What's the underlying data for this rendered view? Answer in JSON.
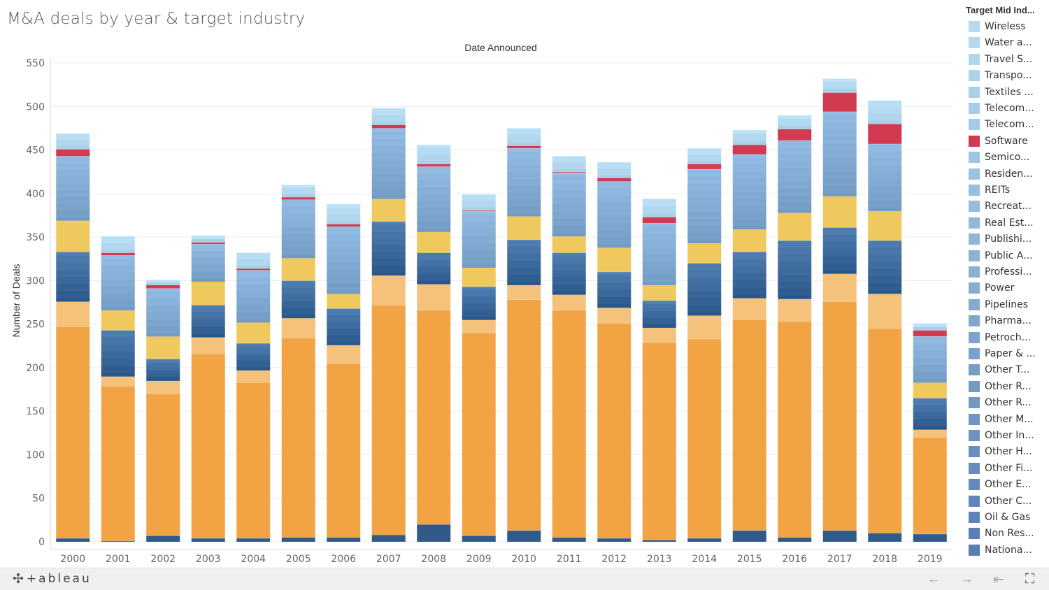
{
  "title": "M&A deals by year & target industry",
  "legend": {
    "title": "Target Mid Ind...",
    "items": [
      {
        "label": "Wireless",
        "color": "#b5daf0"
      },
      {
        "label": "Water a...",
        "color": "#b3d8ef"
      },
      {
        "label": "Travel S...",
        "color": "#b0d6ee"
      },
      {
        "label": "Transpo...",
        "color": "#acd3ec"
      },
      {
        "label": "Textiles ...",
        "color": "#a9d0ea"
      },
      {
        "label": "Telecom...",
        "color": "#a6cde8"
      },
      {
        "label": "Telecom...",
        "color": "#a3cae6"
      },
      {
        "label": "Software",
        "color": "#d13a50"
      },
      {
        "label": "Semico...",
        "color": "#9ec5e3"
      },
      {
        "label": "Residen...",
        "color": "#9bc2e1"
      },
      {
        "label": "REITs",
        "color": "#98bfdf"
      },
      {
        "label": "Recreat...",
        "color": "#95bcdd"
      },
      {
        "label": "Real Est...",
        "color": "#92b9db"
      },
      {
        "label": "Publishi...",
        "color": "#8fb6d9"
      },
      {
        "label": "Public A...",
        "color": "#8cb3d7"
      },
      {
        "label": "Professi...",
        "color": "#89b0d5"
      },
      {
        "label": "Power",
        "color": "#86add3"
      },
      {
        "label": "Pipelines",
        "color": "#83aad1"
      },
      {
        "label": "Pharma...",
        "color": "#80a7cf"
      },
      {
        "label": "Petroch...",
        "color": "#7da4cd"
      },
      {
        "label": "Paper & ...",
        "color": "#7aa1cb"
      },
      {
        "label": "Other T...",
        "color": "#779ec9"
      },
      {
        "label": "Other R...",
        "color": "#749bc7"
      },
      {
        "label": "Other R...",
        "color": "#7198c5"
      },
      {
        "label": "Other M...",
        "color": "#6e95c3"
      },
      {
        "label": "Other In...",
        "color": "#6b92c1"
      },
      {
        "label": "Other H...",
        "color": "#688fbf"
      },
      {
        "label": "Other Fi...",
        "color": "#658cbd"
      },
      {
        "label": "Other E...",
        "color": "#6289bb"
      },
      {
        "label": "Other C...",
        "color": "#5f86b9"
      },
      {
        "label": "Oil & Gas",
        "color": "#5c83b7"
      },
      {
        "label": "Non Res...",
        "color": "#5980b5"
      },
      {
        "label": "Nationa...",
        "color": "#567db3"
      }
    ]
  },
  "footer": {
    "logo": "+ableau",
    "back_icon": "←",
    "forward_icon": "→",
    "reset_icon": "⇤",
    "fullscreen_icon": "⛶"
  },
  "chart_data": {
    "type": "bar",
    "stacked": true,
    "title": "M&A deals by year & target industry",
    "column_header": "Date Announced",
    "ylabel": "Number of Deals",
    "xlabel": "",
    "ylim": [
      0,
      550
    ],
    "yticks": [
      0,
      50,
      100,
      150,
      200,
      250,
      300,
      350,
      400,
      450,
      500,
      550
    ],
    "grid": true,
    "legend_position": "right",
    "categories": [
      "2000",
      "2001",
      "2002",
      "2003",
      "2004",
      "2005",
      "2006",
      "2007",
      "2008",
      "2009",
      "2010",
      "2011",
      "2012",
      "2013",
      "2014",
      "2015",
      "2016",
      "2017",
      "2018",
      "2019"
    ],
    "totals": [
      469,
      351,
      301,
      352,
      332,
      410,
      388,
      498,
      456,
      399,
      475,
      443,
      436,
      394,
      452,
      473,
      490,
      532,
      507,
      251
    ],
    "segments": [
      {
        "group": "dark blue (bottom)",
        "color": "#2f5a8a",
        "values": [
          4,
          1,
          7,
          4,
          4,
          5,
          5,
          8,
          20,
          7,
          13,
          5,
          4,
          2,
          4,
          13,
          5,
          13,
          10,
          9
        ]
      },
      {
        "group": "orange",
        "color": "#f2a445",
        "values": [
          243,
          178,
          163,
          212,
          179,
          229,
          200,
          264,
          246,
          233,
          265,
          261,
          247,
          227,
          229,
          242,
          248,
          263,
          235,
          111
        ]
      },
      {
        "group": "light orange",
        "color": "#f5c27c",
        "values": [
          29,
          11,
          15,
          19,
          14,
          23,
          21,
          34,
          30,
          15,
          17,
          18,
          18,
          17,
          27,
          25,
          26,
          32,
          40,
          9
        ]
      },
      {
        "group": "blues (lower)",
        "color": "#3f6d9f",
        "values": [
          57,
          53,
          25,
          37,
          31,
          43,
          42,
          62,
          36,
          38,
          52,
          48,
          41,
          31,
          60,
          53,
          67,
          53,
          61,
          36
        ]
      },
      {
        "group": "yellow",
        "color": "#f0c95e",
        "values": [
          36,
          23,
          26,
          27,
          24,
          26,
          17,
          26,
          24,
          22,
          27,
          19,
          28,
          18,
          23,
          26,
          32,
          36,
          34,
          18
        ]
      },
      {
        "group": "light blues (upper)",
        "color": "#7fa9d0",
        "values": [
          74,
          63,
          55,
          43,
          60,
          67,
          77,
          81,
          75,
          65,
          78,
          73,
          76,
          71,
          85,
          86,
          83,
          97,
          77,
          53
        ]
      },
      {
        "group": "Software",
        "color": "#d13a50",
        "values": [
          8,
          3,
          4,
          2,
          2,
          3,
          3,
          4,
          3,
          1,
          3,
          1,
          4,
          7,
          6,
          11,
          13,
          22,
          23,
          7
        ]
      },
      {
        "group": "lightest blues (top)",
        "color": "#b0d6ee",
        "values": [
          18,
          19,
          6,
          8,
          18,
          14,
          23,
          19,
          22,
          18,
          20,
          18,
          18,
          21,
          18,
          17,
          16,
          16,
          27,
          8
        ]
      }
    ]
  }
}
